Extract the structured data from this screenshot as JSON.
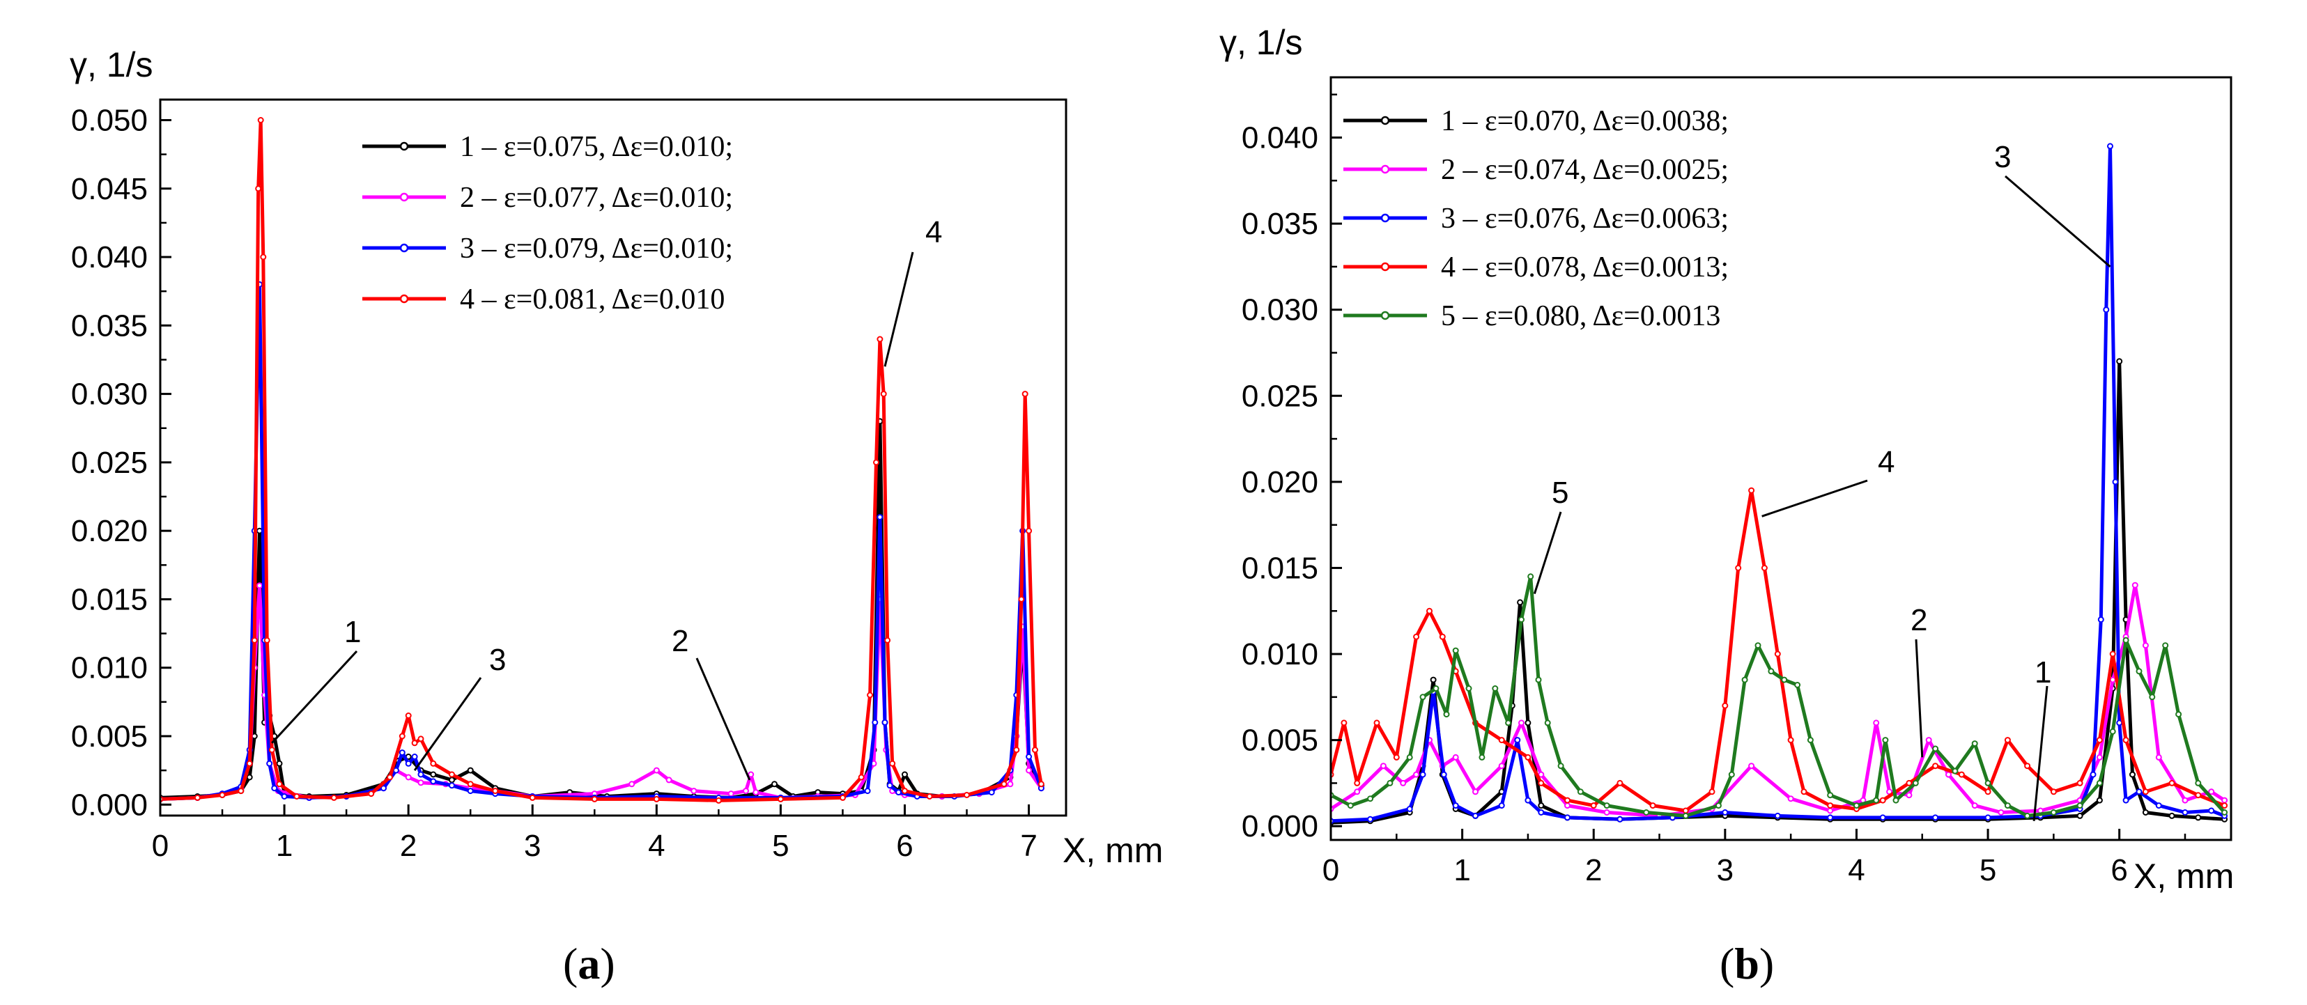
{
  "chart_data": [
    {
      "type": "line",
      "panel_label": "a",
      "ylabel": "γ, 1/s",
      "xlabel": "X, mm",
      "xlim": [
        0,
        7.3
      ],
      "ylim": [
        -0.0008,
        0.0515
      ],
      "xticks": [
        "0",
        "1",
        "2",
        "3",
        "4",
        "5",
        "6",
        "7"
      ],
      "yticks": [
        "0.000",
        "0.005",
        "0.010",
        "0.015",
        "0.020",
        "0.025",
        "0.030",
        "0.035",
        "0.040",
        "0.045",
        "0.050"
      ],
      "legend_position": "top-center",
      "series": [
        {
          "name": "1 – ε=0.075, Δε=0.010;",
          "color": "#000000",
          "x": [
            0.0,
            0.3,
            0.5,
            0.65,
            0.72,
            0.76,
            0.8,
            0.84,
            0.88,
            0.92,
            0.96,
            1.0,
            1.2,
            1.5,
            1.8,
            1.92,
            2.0,
            2.1,
            2.2,
            2.35,
            2.5,
            2.7,
            3.0,
            3.3,
            3.6,
            4.0,
            4.3,
            4.6,
            4.8,
            4.95,
            5.1,
            5.3,
            5.5,
            5.65,
            5.75,
            5.8,
            5.84,
            5.88,
            5.95,
            6.0,
            6.1,
            6.3,
            6.6,
            6.85,
            6.9,
            6.95,
            7.0,
            7.1
          ],
          "values": [
            0.0005,
            0.0006,
            0.0007,
            0.001,
            0.002,
            0.005,
            0.02,
            0.006,
            0.0065,
            0.005,
            0.003,
            0.0008,
            0.0006,
            0.0007,
            0.0015,
            0.0032,
            0.0035,
            0.0025,
            0.0022,
            0.0018,
            0.0025,
            0.0012,
            0.0006,
            0.0009,
            0.0006,
            0.0008,
            0.0006,
            0.0005,
            0.0008,
            0.0015,
            0.0006,
            0.0009,
            0.0008,
            0.001,
            0.004,
            0.028,
            0.006,
            0.0015,
            0.001,
            0.0022,
            0.0008,
            0.0006,
            0.0008,
            0.002,
            0.005,
            0.012,
            0.003,
            0.0014
          ]
        },
        {
          "name": "2 – ε=0.077, Δε=0.010;",
          "color": "#ff00ff",
          "x": [
            0.0,
            0.3,
            0.5,
            0.65,
            0.72,
            0.76,
            0.8,
            0.84,
            0.88,
            0.95,
            1.2,
            1.5,
            1.8,
            1.9,
            2.0,
            2.1,
            2.3,
            2.5,
            2.7,
            3.0,
            3.5,
            3.8,
            4.0,
            4.1,
            4.3,
            4.6,
            4.72,
            4.76,
            4.8,
            5.0,
            5.3,
            5.6,
            5.75,
            5.8,
            5.85,
            5.9,
            6.0,
            6.3,
            6.6,
            6.85,
            6.9,
            6.95,
            7.0,
            7.1
          ],
          "values": [
            0.0004,
            0.0005,
            0.0008,
            0.0012,
            0.003,
            0.01,
            0.016,
            0.008,
            0.003,
            0.001,
            0.0005,
            0.0006,
            0.0012,
            0.0025,
            0.002,
            0.0016,
            0.0015,
            0.0012,
            0.001,
            0.0006,
            0.0008,
            0.0015,
            0.0025,
            0.0018,
            0.001,
            0.0008,
            0.001,
            0.0022,
            0.0009,
            0.0005,
            0.0006,
            0.0007,
            0.003,
            0.015,
            0.004,
            0.001,
            0.0007,
            0.0006,
            0.0008,
            0.0015,
            0.005,
            0.013,
            0.0025,
            0.0012
          ]
        },
        {
          "name": "3 – ε=0.079, Δε=0.010;",
          "color": "#0000ff",
          "x": [
            0.0,
            0.3,
            0.5,
            0.65,
            0.72,
            0.76,
            0.8,
            0.84,
            0.88,
            0.92,
            1.0,
            1.2,
            1.5,
            1.8,
            1.9,
            1.95,
            2.0,
            2.05,
            2.1,
            2.2,
            2.35,
            2.5,
            2.7,
            3.0,
            3.5,
            4.0,
            4.5,
            5.0,
            5.5,
            5.7,
            5.76,
            5.8,
            5.84,
            5.88,
            5.95,
            6.1,
            6.4,
            6.7,
            6.85,
            6.9,
            6.95,
            7.0,
            7.1
          ],
          "values": [
            0.0004,
            0.0005,
            0.0008,
            0.0013,
            0.004,
            0.02,
            0.038,
            0.012,
            0.003,
            0.0012,
            0.0006,
            0.0005,
            0.0006,
            0.0012,
            0.0025,
            0.0038,
            0.003,
            0.0035,
            0.0022,
            0.0017,
            0.0014,
            0.001,
            0.0008,
            0.0006,
            0.0005,
            0.0006,
            0.0005,
            0.0005,
            0.0006,
            0.001,
            0.006,
            0.021,
            0.006,
            0.0014,
            0.0009,
            0.0006,
            0.0006,
            0.0009,
            0.0025,
            0.008,
            0.02,
            0.0035,
            0.0012
          ]
        },
        {
          "name": "4 – ε=0.081, Δε=0.010",
          "color": "#ff0000",
          "x": [
            0.0,
            0.3,
            0.5,
            0.65,
            0.72,
            0.76,
            0.79,
            0.81,
            0.83,
            0.86,
            0.9,
            0.96,
            1.1,
            1.4,
            1.7,
            1.85,
            1.95,
            2.0,
            2.05,
            2.1,
            2.2,
            2.35,
            2.5,
            2.7,
            3.0,
            3.5,
            4.0,
            4.5,
            5.0,
            5.5,
            5.65,
            5.72,
            5.77,
            5.8,
            5.83,
            5.86,
            5.9,
            6.0,
            6.2,
            6.5,
            6.8,
            6.9,
            6.94,
            6.97,
            7.0,
            7.05,
            7.1
          ],
          "values": [
            0.0004,
            0.0005,
            0.0007,
            0.001,
            0.003,
            0.012,
            0.045,
            0.05,
            0.04,
            0.012,
            0.004,
            0.0015,
            0.0006,
            0.0005,
            0.0008,
            0.002,
            0.005,
            0.0065,
            0.0045,
            0.0048,
            0.003,
            0.0022,
            0.0015,
            0.001,
            0.0005,
            0.0004,
            0.0004,
            0.0003,
            0.0004,
            0.0005,
            0.002,
            0.008,
            0.025,
            0.034,
            0.03,
            0.012,
            0.003,
            0.001,
            0.0006,
            0.0007,
            0.0015,
            0.004,
            0.015,
            0.03,
            0.02,
            0.004,
            0.0015
          ]
        }
      ],
      "annotations": [
        {
          "text": "1",
          "x": 0.9,
          "y": 0.0045
        },
        {
          "text": "2",
          "x": 4.75,
          "y": 0.0018
        },
        {
          "text": "3",
          "x": 2.05,
          "y": 0.0025
        },
        {
          "text": "4",
          "x": 5.84,
          "y": 0.032
        }
      ]
    },
    {
      "type": "line",
      "panel_label": "b",
      "ylabel": "γ, 1/s",
      "xlabel": "X, mm",
      "xlim": [
        0,
        6.85
      ],
      "ylim": [
        -0.0008,
        0.0435
      ],
      "xticks": [
        "0",
        "1",
        "2",
        "3",
        "4",
        "5",
        "6"
      ],
      "yticks": [
        "0.000",
        "0.005",
        "0.010",
        "0.015",
        "0.020",
        "0.025",
        "0.030",
        "0.035",
        "0.040"
      ],
      "legend_position": "top-left",
      "series": [
        {
          "name": "1 – ε=0.070, Δε=0.0038;",
          "color": "#000000",
          "x": [
            0.0,
            0.3,
            0.6,
            0.7,
            0.78,
            0.85,
            0.95,
            1.1,
            1.3,
            1.38,
            1.44,
            1.5,
            1.6,
            1.8,
            2.2,
            2.6,
            3.0,
            3.4,
            3.8,
            4.2,
            4.6,
            5.0,
            5.4,
            5.7,
            5.85,
            5.95,
            6.0,
            6.05,
            6.1,
            6.2,
            6.4,
            6.6,
            6.8
          ],
          "values": [
            0.0002,
            0.0003,
            0.0008,
            0.0035,
            0.0085,
            0.003,
            0.001,
            0.0006,
            0.002,
            0.007,
            0.013,
            0.006,
            0.0012,
            0.0005,
            0.0004,
            0.0005,
            0.0006,
            0.0005,
            0.0004,
            0.0004,
            0.0004,
            0.0004,
            0.0005,
            0.0006,
            0.0015,
            0.008,
            0.027,
            0.012,
            0.003,
            0.0008,
            0.0006,
            0.0005,
            0.0004
          ]
        },
        {
          "name": "2 – ε=0.074, Δε=0.0025;",
          "color": "#ff00ff",
          "x": [
            0.0,
            0.2,
            0.4,
            0.55,
            0.65,
            0.75,
            0.85,
            0.95,
            1.1,
            1.3,
            1.45,
            1.6,
            1.8,
            2.1,
            2.5,
            2.9,
            3.2,
            3.5,
            3.8,
            4.05,
            4.15,
            4.25,
            4.4,
            4.55,
            4.7,
            4.9,
            5.1,
            5.4,
            5.7,
            5.85,
            5.95,
            6.05,
            6.12,
            6.2,
            6.3,
            6.5,
            6.7,
            6.8
          ],
          "values": [
            0.001,
            0.002,
            0.0035,
            0.0025,
            0.003,
            0.005,
            0.0035,
            0.004,
            0.002,
            0.0035,
            0.006,
            0.003,
            0.0012,
            0.0008,
            0.0006,
            0.001,
            0.0035,
            0.0016,
            0.0009,
            0.0015,
            0.006,
            0.002,
            0.0018,
            0.005,
            0.003,
            0.0012,
            0.0008,
            0.0009,
            0.0015,
            0.004,
            0.0085,
            0.011,
            0.014,
            0.0105,
            0.004,
            0.0015,
            0.002,
            0.0015
          ]
        },
        {
          "name": "3 – ε=0.076, Δε=0.0063;",
          "color": "#0000ff",
          "x": [
            0.0,
            0.3,
            0.6,
            0.7,
            0.78,
            0.86,
            0.95,
            1.1,
            1.3,
            1.42,
            1.5,
            1.6,
            1.8,
            2.2,
            2.6,
            3.0,
            3.4,
            3.8,
            4.2,
            4.6,
            5.0,
            5.4,
            5.7,
            5.8,
            5.86,
            5.9,
            5.93,
            5.97,
            6.0,
            6.05,
            6.15,
            6.3,
            6.5,
            6.7,
            6.8
          ],
          "values": [
            0.0003,
            0.0004,
            0.001,
            0.003,
            0.0078,
            0.003,
            0.0012,
            0.0006,
            0.0012,
            0.005,
            0.0015,
            0.0008,
            0.0005,
            0.0004,
            0.0005,
            0.0008,
            0.0006,
            0.0005,
            0.0005,
            0.0005,
            0.0005,
            0.0006,
            0.001,
            0.003,
            0.012,
            0.03,
            0.0395,
            0.02,
            0.006,
            0.0015,
            0.002,
            0.0012,
            0.0008,
            0.0009,
            0.0006
          ]
        },
        {
          "name": "4 – ε=0.078, Δε=0.0013;",
          "color": "#ff0000",
          "x": [
            0.0,
            0.1,
            0.2,
            0.35,
            0.5,
            0.65,
            0.75,
            0.85,
            0.95,
            1.1,
            1.3,
            1.5,
            1.6,
            1.8,
            2.0,
            2.2,
            2.45,
            2.7,
            2.9,
            3.0,
            3.1,
            3.2,
            3.3,
            3.4,
            3.5,
            3.6,
            3.8,
            4.0,
            4.2,
            4.4,
            4.6,
            4.8,
            5.0,
            5.15,
            5.3,
            5.5,
            5.7,
            5.85,
            5.95,
            6.05,
            6.2,
            6.4,
            6.6,
            6.8
          ],
          "values": [
            0.003,
            0.006,
            0.0025,
            0.006,
            0.004,
            0.011,
            0.0125,
            0.011,
            0.009,
            0.006,
            0.005,
            0.004,
            0.0025,
            0.0015,
            0.0012,
            0.0025,
            0.0012,
            0.0009,
            0.002,
            0.007,
            0.015,
            0.0195,
            0.015,
            0.01,
            0.005,
            0.002,
            0.0012,
            0.001,
            0.0015,
            0.0025,
            0.0035,
            0.003,
            0.002,
            0.005,
            0.0035,
            0.002,
            0.0025,
            0.005,
            0.01,
            0.005,
            0.002,
            0.0025,
            0.0018,
            0.0012
          ]
        },
        {
          "name": "5 – ε=0.080, Δε=0.0013",
          "color": "#1f7a1f",
          "x": [
            0.0,
            0.15,
            0.3,
            0.45,
            0.6,
            0.7,
            0.8,
            0.88,
            0.95,
            1.05,
            1.15,
            1.25,
            1.35,
            1.45,
            1.52,
            1.58,
            1.65,
            1.75,
            1.9,
            2.1,
            2.4,
            2.7,
            2.95,
            3.05,
            3.15,
            3.25,
            3.35,
            3.45,
            3.55,
            3.65,
            3.8,
            4.0,
            4.15,
            4.22,
            4.3,
            4.45,
            4.6,
            4.75,
            4.9,
            5.0,
            5.15,
            5.3,
            5.5,
            5.7,
            5.85,
            5.95,
            6.05,
            6.15,
            6.25,
            6.35,
            6.45,
            6.6,
            6.8
          ],
          "values": [
            0.0018,
            0.0012,
            0.0016,
            0.0025,
            0.004,
            0.0075,
            0.008,
            0.0065,
            0.0102,
            0.008,
            0.004,
            0.008,
            0.006,
            0.012,
            0.0145,
            0.0085,
            0.006,
            0.0035,
            0.002,
            0.0012,
            0.0008,
            0.0006,
            0.0012,
            0.003,
            0.0085,
            0.0105,
            0.009,
            0.0085,
            0.0082,
            0.005,
            0.0018,
            0.0012,
            0.0015,
            0.005,
            0.0015,
            0.0025,
            0.0045,
            0.0032,
            0.0048,
            0.0025,
            0.0012,
            0.0006,
            0.0008,
            0.0012,
            0.0025,
            0.0055,
            0.0108,
            0.009,
            0.0075,
            0.0105,
            0.0065,
            0.0025,
            0.0008
          ]
        }
      ],
      "annotations": [
        {
          "text": "1",
          "x": 5.35,
          "y": 0.0003
        },
        {
          "text": "2",
          "x": 4.5,
          "y": 0.004
        },
        {
          "text": "3",
          "x": 5.93,
          "y": 0.0325
        },
        {
          "text": "4",
          "x": 3.28,
          "y": 0.018
        },
        {
          "text": "5",
          "x": 1.55,
          "y": 0.0135
        }
      ]
    }
  ]
}
